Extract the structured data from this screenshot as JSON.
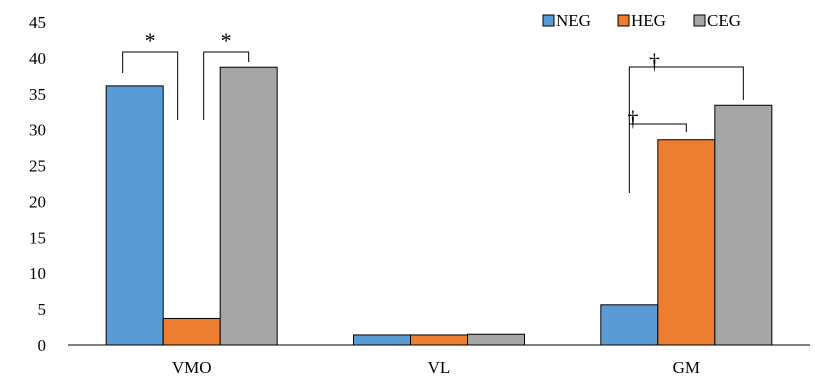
{
  "chart_data": {
    "type": "bar",
    "title": "",
    "xlabel": "",
    "ylabel": "",
    "ylim": [
      0,
      45
    ],
    "yticks": [
      0,
      5,
      10,
      15,
      20,
      25,
      30,
      35,
      40,
      45
    ],
    "grid": false,
    "legend_position": "top-right",
    "categories": [
      "VMO",
      "VL",
      "GM"
    ],
    "series": [
      {
        "name": "NEG",
        "color": "#5B9BD5",
        "values": [
          36.1,
          1.4,
          5.6
        ]
      },
      {
        "name": "HEG",
        "color": "#ED7D31",
        "values": [
          3.7,
          1.4,
          28.6
        ]
      },
      {
        "name": "CEG",
        "color": "#A5A5A5",
        "values": [
          38.7,
          1.5,
          33.4
        ]
      }
    ],
    "annotations": [
      {
        "category": "VMO",
        "from_series": "NEG",
        "to_series": "HEG",
        "symbol": "*"
      },
      {
        "category": "VMO",
        "from_series": "HEG",
        "to_series": "CEG",
        "symbol": "*"
      },
      {
        "category": "GM",
        "from_series": "NEG",
        "to_series": "HEG",
        "symbol": "†"
      },
      {
        "category": "GM",
        "from_series": "NEG",
        "to_series": "CEG",
        "symbol": "†"
      }
    ]
  }
}
